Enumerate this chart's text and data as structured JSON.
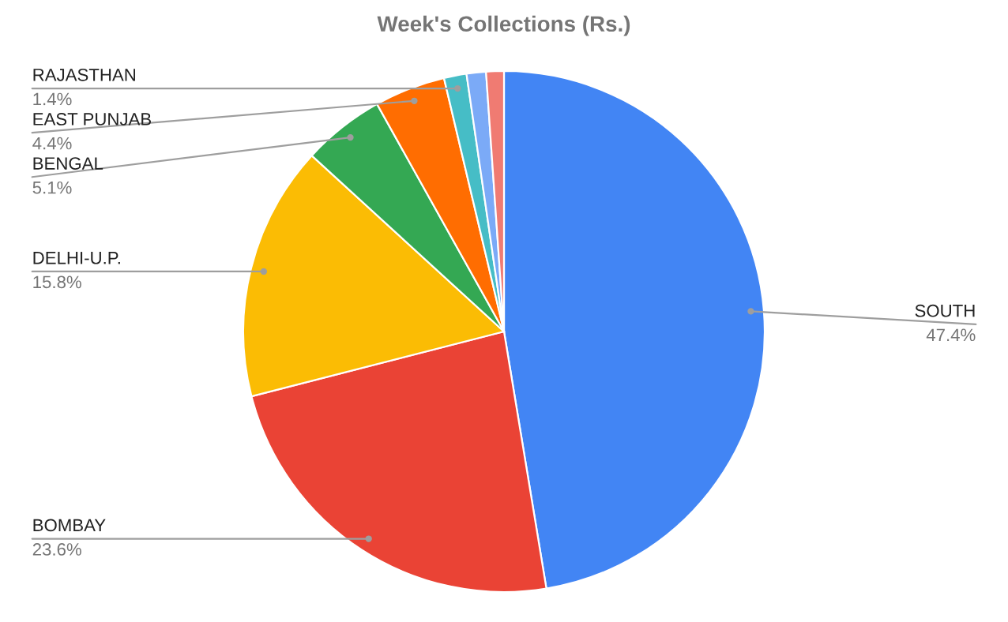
{
  "chart_data": {
    "type": "pie",
    "title": "Week's Collections (Rs.)",
    "categories": [
      "SOUTH",
      "BOMBAY",
      "DELHI-U.P.",
      "BENGAL",
      "EAST PUNJAB",
      "RAJASTHAN",
      null,
      null
    ],
    "values": [
      47.4,
      23.6,
      15.8,
      5.1,
      4.4,
      1.4,
      1.2,
      1.1
    ],
    "value_labels": [
      "47.4%",
      "23.6%",
      "15.8%",
      "5.1%",
      "4.4%",
      "1.4%",
      null,
      null
    ],
    "colors": [
      "#4285f4",
      "#ea4335",
      "#fbbc04",
      "#34a853",
      "#ff6d01",
      "#46bdc6",
      "#7baaf7",
      "#f07b72"
    ],
    "legend": false
  }
}
